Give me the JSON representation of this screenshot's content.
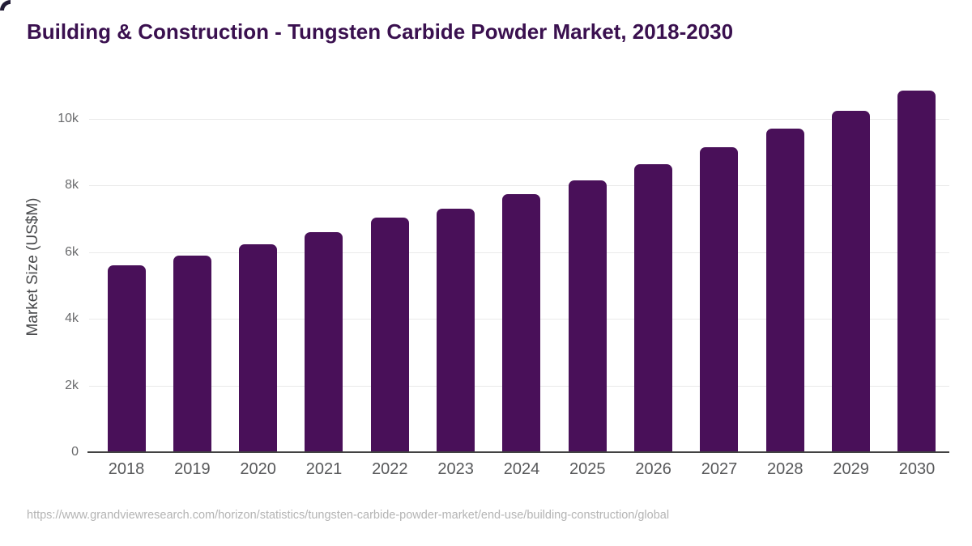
{
  "title": "Building & Construction - Tungsten Carbide Powder Market, 2018-2030",
  "chart_data": {
    "type": "bar",
    "title": "Building & Construction - Tungsten Carbide Powder Market, 2018-2030",
    "categories": [
      "2018",
      "2019",
      "2020",
      "2021",
      "2022",
      "2023",
      "2024",
      "2025",
      "2026",
      "2027",
      "2028",
      "2029",
      "2030"
    ],
    "values": [
      5600,
      5900,
      6250,
      6600,
      7050,
      7300,
      7750,
      8150,
      8650,
      9150,
      9700,
      10250,
      10850
    ],
    "xlabel": "",
    "ylabel": "Market Size (US$M)",
    "ylim": [
      0,
      11000
    ],
    "yticks": [
      0,
      2000,
      4000,
      6000,
      8000,
      10000
    ],
    "ytick_labels": [
      "0",
      "2k",
      "4k",
      "6k",
      "8k",
      "10k"
    ],
    "grid": "horizontal",
    "legend": "none",
    "bar_color": "#491059",
    "gridline_color": "#e9e9e9",
    "axis_line_color": "#424242",
    "title_color": "#3a104f"
  },
  "source": {
    "url": "https://www.grandviewresearch.com/horizon/statistics/tungsten-carbide-powder-market/end-use/building-construction/global"
  }
}
